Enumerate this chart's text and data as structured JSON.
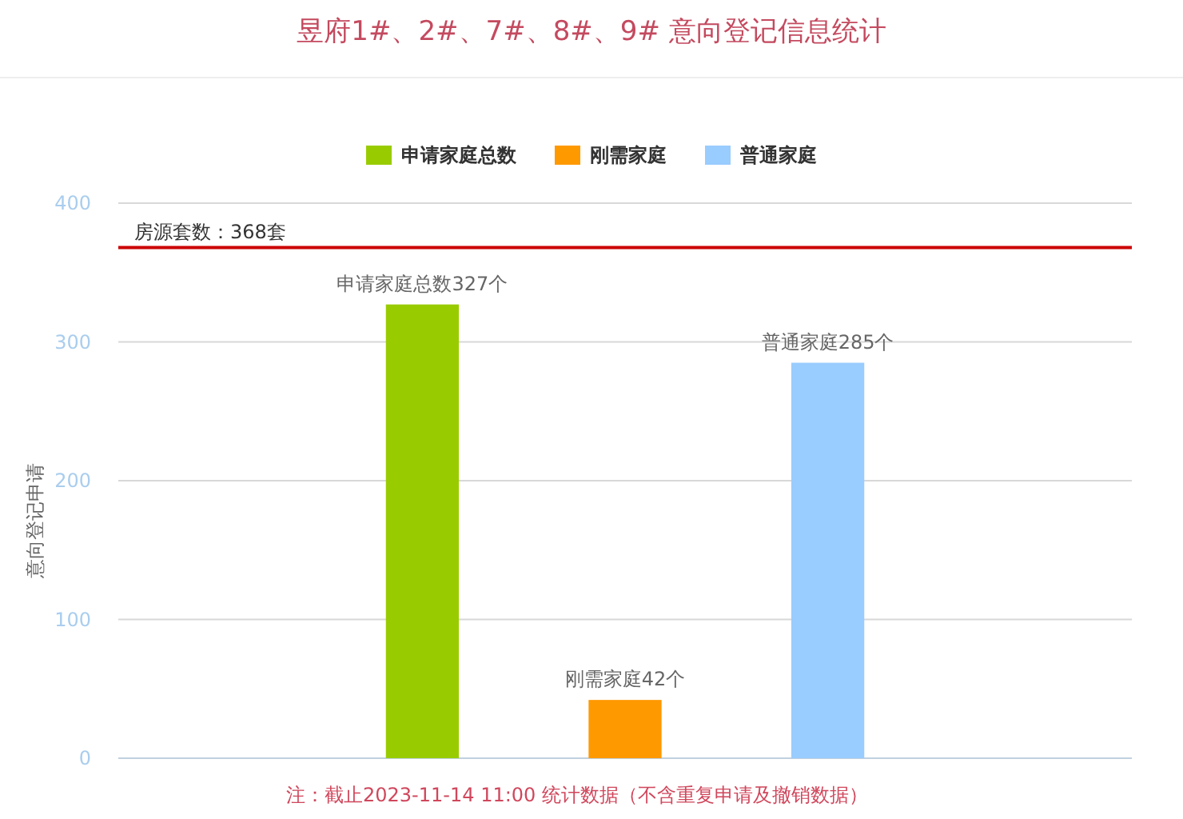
{
  "chart_data": {
    "type": "bar",
    "title": "昱府1#、2#、7#、8#、9# 意向登记信息统计",
    "ylabel": "意向登记申请",
    "annotations": [
      "注：截止2023-11-14 11:00 统计数据（不含重复申请及撤销数据）"
    ],
    "categories": [
      null,
      null,
      null,
      null,
      null
    ],
    "series": [
      {
        "name": "申请家庭总数",
        "color": "#99cc00",
        "values": [
          null,
          327,
          null,
          null,
          null
        ],
        "value_labels": [
          null,
          "申请家庭总数327个",
          null,
          null,
          null
        ]
      },
      {
        "name": "刚需家庭",
        "color": "#ff9900",
        "values": [
          null,
          null,
          42,
          null,
          null
        ],
        "value_labels": [
          null,
          null,
          "刚需家庭42个",
          null,
          null
        ]
      },
      {
        "name": "普通家庭",
        "color": "#99ccff",
        "values": [
          null,
          null,
          null,
          285,
          null
        ],
        "value_labels": [
          null,
          null,
          null,
          "普通家庭285个",
          null
        ]
      }
    ],
    "stacked": true,
    "ylim": [
      0,
      400
    ],
    "yticks": [
      0,
      100,
      200,
      300,
      400
    ],
    "grid": "y",
    "legend": "top",
    "ref_lines": [
      {
        "axis": "y",
        "value": 368,
        "label": "房源套数：368套",
        "color": "#cc0000"
      }
    ]
  }
}
